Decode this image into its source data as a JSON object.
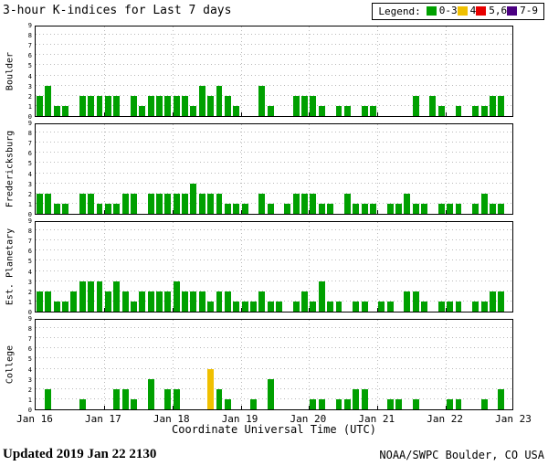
{
  "title": "3-hour K-indices for Last 7 days",
  "legend": {
    "label": "Legend:",
    "items": [
      {
        "label": "0-3",
        "color": "#00a000"
      },
      {
        "label": "4",
        "color": "#f0c000"
      },
      {
        "label": "5,6",
        "color": "#e80000"
      },
      {
        "label": "7-9",
        "color": "#4b0082"
      }
    ]
  },
  "footer": {
    "updated": "Updated 2019 Jan 22 2130",
    "source": "NOAA/SWPC Boulder, CO USA"
  },
  "chart_data": {
    "type": "bar",
    "title": "3-hour K-indices for Last 7 days",
    "xlabel": "Coordinate Universal Time (UTC)",
    "x_tick_labels": [
      "Jan 16",
      "Jan 17",
      "Jan 18",
      "Jan 19",
      "Jan 20",
      "Jan 21",
      "Jan 22",
      "Jan 23"
    ],
    "ylim": [
      0,
      9
    ],
    "y_ticks": [
      0,
      1,
      2,
      3,
      4,
      5,
      6,
      7,
      8,
      9
    ],
    "days": 7,
    "slots_per_day": 8,
    "grid": "dotted",
    "legend_position": "top-right",
    "color_scale": [
      {
        "range": "0-3",
        "color": "#00a000"
      },
      {
        "range": "4",
        "color": "#f0c000"
      },
      {
        "range": "5,6",
        "color": "#e80000"
      },
      {
        "range": "7-9",
        "color": "#4b0082"
      }
    ],
    "series": [
      {
        "name": "Boulder",
        "values": [
          2,
          3,
          1,
          1,
          0,
          2,
          2,
          2,
          2,
          2,
          0,
          2,
          1,
          2,
          2,
          2,
          2,
          2,
          1,
          3,
          2,
          3,
          2,
          1,
          0,
          0,
          3,
          1,
          0,
          0,
          2,
          2,
          2,
          1,
          0,
          1,
          1,
          0,
          1,
          1,
          0,
          0,
          0,
          0,
          2,
          0,
          2,
          1,
          0,
          1,
          0,
          1,
          1,
          2,
          2
        ]
      },
      {
        "name": "Fredericksburg",
        "values": [
          2,
          2,
          1,
          1,
          0,
          2,
          2,
          1,
          1,
          1,
          2,
          2,
          0,
          2,
          2,
          2,
          2,
          2,
          3,
          2,
          2,
          2,
          1,
          1,
          1,
          0,
          2,
          1,
          0,
          1,
          2,
          2,
          2,
          1,
          1,
          0,
          2,
          1,
          1,
          1,
          0,
          1,
          1,
          2,
          1,
          1,
          0,
          1,
          1,
          1,
          0,
          1,
          2,
          1,
          1
        ]
      },
      {
        "name": "Est. Planetary",
        "values": [
          2,
          2,
          1,
          1,
          2,
          3,
          3,
          3,
          2,
          3,
          2,
          1,
          2,
          2,
          2,
          2,
          3,
          2,
          2,
          2,
          1,
          2,
          2,
          1,
          1,
          1,
          2,
          1,
          1,
          0,
          1,
          2,
          1,
          3,
          1,
          1,
          0,
          1,
          1,
          0,
          1,
          1,
          0,
          2,
          2,
          1,
          0,
          1,
          1,
          1,
          0,
          1,
          1,
          2,
          2
        ]
      },
      {
        "name": "College",
        "values": [
          0,
          2,
          0,
          0,
          0,
          1,
          0,
          0,
          0,
          2,
          2,
          1,
          0,
          3,
          0,
          2,
          2,
          0,
          0,
          0,
          4,
          2,
          1,
          0,
          0,
          1,
          0,
          3,
          0,
          0,
          0,
          0,
          1,
          1,
          0,
          1,
          1,
          2,
          2,
          0,
          0,
          1,
          1,
          0,
          1,
          0,
          0,
          0,
          1,
          1,
          0,
          0,
          1,
          0,
          2
        ]
      }
    ]
  }
}
